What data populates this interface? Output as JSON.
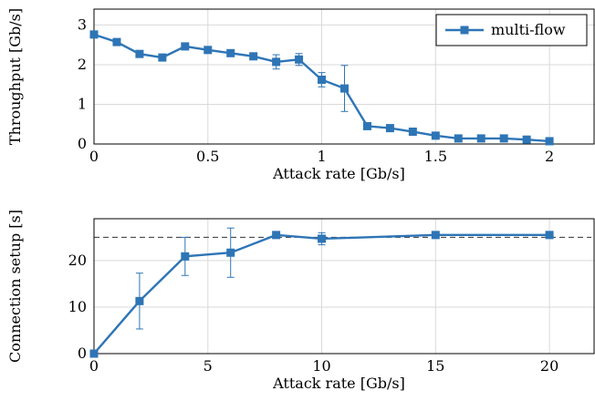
{
  "colors": {
    "series": "#2e75b6",
    "grid": "#d9d9d9",
    "reference": "#333333"
  },
  "chart_data": [
    {
      "type": "line",
      "xlabel": "Attack rate [Gb/s]",
      "ylabel": "Throughput [Gb/s]",
      "xlim": [
        0,
        2.2
      ],
      "ylim": [
        0,
        3.4
      ],
      "xticks": [
        "0",
        "0.5",
        "1",
        "1.5",
        "2"
      ],
      "yticks": [
        "0",
        "1",
        "2",
        "3"
      ],
      "grid": true,
      "legend_position": "top-right",
      "marker": "square",
      "series": [
        {
          "name": "multi-flow",
          "x": [
            0,
            0.1,
            0.2,
            0.3,
            0.4,
            0.5,
            0.6,
            0.7,
            0.8,
            0.9,
            1.0,
            1.1,
            1.2,
            1.3,
            1.4,
            1.5,
            1.6,
            1.7,
            1.8,
            1.9,
            2.0
          ],
          "y": [
            2.76,
            2.57,
            2.27,
            2.18,
            2.46,
            2.37,
            2.29,
            2.21,
            2.07,
            2.13,
            1.62,
            1.4,
            0.45,
            0.4,
            0.31,
            0.21,
            0.14,
            0.14,
            0.14,
            0.11,
            0.07
          ],
          "error": [
            0.05,
            0.05,
            0.05,
            0.05,
            0.06,
            0.05,
            0.05,
            0.05,
            0.18,
            0.15,
            0.18,
            0.58,
            0.06,
            0.05,
            0.05,
            0.04,
            0.03,
            0.03,
            0.03,
            0.03,
            0.03
          ]
        }
      ]
    },
    {
      "type": "line",
      "xlabel": "Attack rate [Gb/s]",
      "ylabel": "Connection setup [s]",
      "xlim": [
        0,
        22
      ],
      "ylim": [
        0,
        29
      ],
      "xticks": [
        "0",
        "5",
        "10",
        "15",
        "20"
      ],
      "yticks": [
        "0",
        "10",
        "20"
      ],
      "grid": true,
      "marker": "square",
      "reference_line": 25,
      "series": [
        {
          "x": [
            0,
            2,
            4,
            6,
            8,
            10,
            15,
            20
          ],
          "y": [
            0,
            11.3,
            20.9,
            21.7,
            25.5,
            24.7,
            25.5,
            25.5
          ],
          "error": [
            0,
            6.0,
            4.1,
            5.3,
            0.4,
            1.3,
            0.3,
            0.3
          ]
        }
      ]
    }
  ]
}
